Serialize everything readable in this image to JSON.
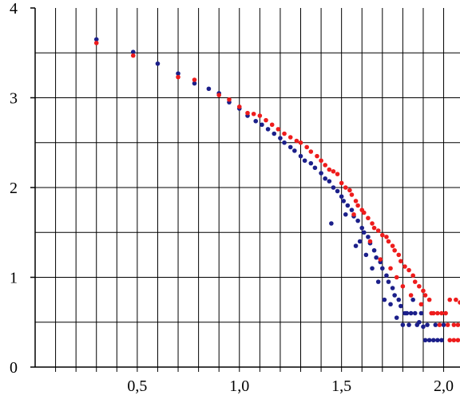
{
  "chart_data": {
    "type": "scatter",
    "title": "",
    "xlabel": "",
    "ylabel": "",
    "xlim": [
      0.0,
      2.08
    ],
    "ylim": [
      0,
      4
    ],
    "grid": true,
    "x_ticks": [
      {
        "value": 0.5,
        "label": "0,5"
      },
      {
        "value": 1.0,
        "label": "1,0"
      },
      {
        "value": 1.5,
        "label": "1,5"
      },
      {
        "value": 2.0,
        "label": "2,0"
      }
    ],
    "y_ticks": [
      {
        "value": 0,
        "label": "0"
      },
      {
        "value": 1,
        "label": "1"
      },
      {
        "value": 2,
        "label": "2"
      },
      {
        "value": 3,
        "label": "3"
      },
      {
        "value": 4,
        "label": "4"
      }
    ],
    "colors": {
      "series_1": "#1b1f8a",
      "series_2": "#ee1c1c",
      "grid": "#000000"
    },
    "series": [
      {
        "color": "#1b1f8a",
        "points": [
          [
            0.3,
            3.65
          ],
          [
            0.48,
            3.51
          ],
          [
            0.6,
            3.38
          ],
          [
            0.7,
            3.27
          ],
          [
            0.78,
            3.16
          ],
          [
            0.85,
            3.1
          ],
          [
            0.9,
            3.05
          ],
          [
            0.95,
            2.95
          ],
          [
            1.0,
            2.88
          ],
          [
            1.04,
            2.8
          ],
          [
            1.08,
            2.74
          ],
          [
            1.11,
            2.7
          ],
          [
            1.14,
            2.65
          ],
          [
            1.17,
            2.6
          ],
          [
            1.2,
            2.55
          ],
          [
            1.22,
            2.5
          ],
          [
            1.25,
            2.45
          ],
          [
            1.27,
            2.41
          ],
          [
            1.3,
            2.35
          ],
          [
            1.32,
            2.3
          ],
          [
            1.35,
            2.27
          ],
          [
            1.37,
            2.22
          ],
          [
            1.4,
            2.16
          ],
          [
            1.42,
            2.1
          ],
          [
            1.44,
            2.07
          ],
          [
            1.46,
            2.0
          ],
          [
            1.48,
            1.96
          ],
          [
            1.5,
            1.9
          ],
          [
            1.51,
            1.85
          ],
          [
            1.53,
            1.8
          ],
          [
            1.55,
            1.75
          ],
          [
            1.56,
            1.68
          ],
          [
            1.58,
            1.63
          ],
          [
            1.6,
            1.55
          ],
          [
            1.61,
            1.5
          ],
          [
            1.63,
            1.45
          ],
          [
            1.64,
            1.38
          ],
          [
            1.66,
            1.3
          ],
          [
            1.67,
            1.22
          ],
          [
            1.69,
            1.17
          ],
          [
            1.7,
            1.1
          ],
          [
            1.72,
            1.02
          ],
          [
            1.73,
            0.95
          ],
          [
            1.75,
            0.88
          ],
          [
            1.76,
            0.8
          ],
          [
            1.78,
            0.75
          ],
          [
            1.79,
            0.68
          ],
          [
            1.81,
            0.6
          ],
          [
            1.82,
            0.6
          ],
          [
            1.84,
            0.6
          ],
          [
            1.86,
            0.6
          ],
          [
            1.88,
            0.5
          ],
          [
            1.9,
            0.45
          ],
          [
            1.91,
            0.3
          ],
          [
            1.93,
            0.3
          ],
          [
            1.95,
            0.3
          ],
          [
            1.97,
            0.3
          ],
          [
            1.99,
            0.3
          ],
          [
            1.57,
            1.35
          ],
          [
            1.59,
            1.4
          ],
          [
            1.45,
            1.6
          ],
          [
            1.62,
            1.25
          ],
          [
            1.52,
            1.7
          ],
          [
            1.68,
            0.95
          ],
          [
            1.71,
            0.75
          ],
          [
            1.74,
            0.7
          ],
          [
            1.77,
            0.55
          ],
          [
            1.8,
            0.47
          ],
          [
            1.83,
            0.47
          ],
          [
            1.87,
            0.47
          ],
          [
            1.92,
            0.47
          ],
          [
            1.96,
            0.47
          ],
          [
            2.0,
            0.47
          ],
          [
            1.65,
            1.1
          ],
          [
            1.85,
            0.75
          ],
          [
            1.89,
            0.6
          ]
        ]
      },
      {
        "color": "#ee1c1c",
        "points": [
          [
            0.3,
            3.61
          ],
          [
            0.48,
            3.47
          ],
          [
            0.7,
            3.23
          ],
          [
            0.78,
            3.2
          ],
          [
            0.9,
            3.03
          ],
          [
            0.95,
            2.98
          ],
          [
            1.0,
            2.9
          ],
          [
            1.04,
            2.83
          ],
          [
            1.07,
            2.82
          ],
          [
            1.1,
            2.8
          ],
          [
            1.13,
            2.75
          ],
          [
            1.16,
            2.7
          ],
          [
            1.19,
            2.65
          ],
          [
            1.22,
            2.6
          ],
          [
            1.25,
            2.56
          ],
          [
            1.28,
            2.52
          ],
          [
            1.3,
            2.5
          ],
          [
            1.33,
            2.45
          ],
          [
            1.35,
            2.4
          ],
          [
            1.38,
            2.35
          ],
          [
            1.4,
            2.3
          ],
          [
            1.42,
            2.25
          ],
          [
            1.44,
            2.2
          ],
          [
            1.46,
            2.18
          ],
          [
            1.48,
            2.15
          ],
          [
            1.5,
            2.05
          ],
          [
            1.52,
            2.0
          ],
          [
            1.54,
            1.97
          ],
          [
            1.55,
            1.92
          ],
          [
            1.57,
            1.85
          ],
          [
            1.58,
            1.8
          ],
          [
            1.6,
            1.75
          ],
          [
            1.61,
            1.72
          ],
          [
            1.63,
            1.66
          ],
          [
            1.65,
            1.6
          ],
          [
            1.66,
            1.55
          ],
          [
            1.68,
            1.52
          ],
          [
            1.7,
            1.47
          ],
          [
            1.72,
            1.45
          ],
          [
            1.73,
            1.4
          ],
          [
            1.75,
            1.35
          ],
          [
            1.76,
            1.3
          ],
          [
            1.78,
            1.25
          ],
          [
            1.79,
            1.18
          ],
          [
            1.81,
            1.12
          ],
          [
            1.83,
            1.08
          ],
          [
            1.85,
            1.02
          ],
          [
            1.86,
            0.95
          ],
          [
            1.88,
            0.9
          ],
          [
            1.9,
            0.85
          ],
          [
            1.91,
            0.8
          ],
          [
            1.93,
            0.75
          ],
          [
            1.95,
            0.6
          ],
          [
            1.97,
            0.6
          ],
          [
            1.99,
            0.6
          ],
          [
            2.01,
            0.6
          ],
          [
            2.03,
            0.3
          ],
          [
            2.05,
            0.3
          ],
          [
            2.07,
            0.3
          ],
          [
            2.05,
            0.47
          ],
          [
            2.07,
            0.47
          ],
          [
            2.03,
            0.75
          ],
          [
            2.06,
            0.75
          ],
          [
            2.08,
            0.72
          ],
          [
            1.56,
            1.7
          ],
          [
            1.64,
            1.4
          ],
          [
            1.69,
            1.2
          ],
          [
            1.74,
            1.1
          ],
          [
            1.77,
            1.0
          ],
          [
            1.8,
            0.9
          ],
          [
            1.84,
            0.8
          ],
          [
            1.89,
            0.7
          ],
          [
            1.94,
            0.6
          ],
          [
            1.98,
            0.47
          ],
          [
            2.02,
            0.47
          ]
        ]
      }
    ]
  }
}
